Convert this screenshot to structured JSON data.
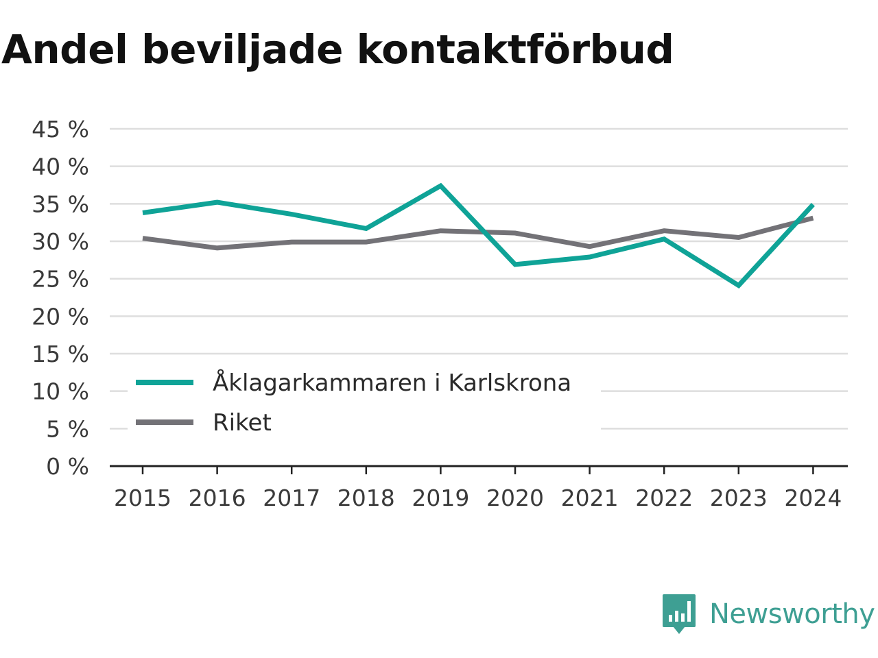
{
  "chart_data": {
    "type": "line",
    "title": "Andel beviljade kontaktförbud",
    "xlabel": "",
    "ylabel": "",
    "categories": [
      "2015",
      "2016",
      "2017",
      "2018",
      "2019",
      "2020",
      "2021",
      "2022",
      "2023",
      "2024"
    ],
    "yticks": [
      "0 %",
      "5 %",
      "10 %",
      "15 %",
      "20 %",
      "25 %",
      "30 %",
      "35 %",
      "40 %",
      "45 %"
    ],
    "ylim": [
      0,
      45
    ],
    "grid": true,
    "legend_position": "bottom-left",
    "series": [
      {
        "name": "Åklagarkammaren i Karlskrona",
        "color": "#0fa397",
        "values": [
          33.8,
          35.2,
          33.6,
          31.7,
          37.4,
          26.9,
          27.9,
          30.3,
          24.1,
          34.9
        ]
      },
      {
        "name": "Riket",
        "color": "#737277",
        "values": [
          30.4,
          29.1,
          29.9,
          29.9,
          31.4,
          31.1,
          29.3,
          31.4,
          30.5,
          33.1
        ]
      }
    ]
  },
  "brand": {
    "name": "Newsworthy",
    "color": "#3e9f93",
    "icon": "newsworthy-logo-icon"
  }
}
